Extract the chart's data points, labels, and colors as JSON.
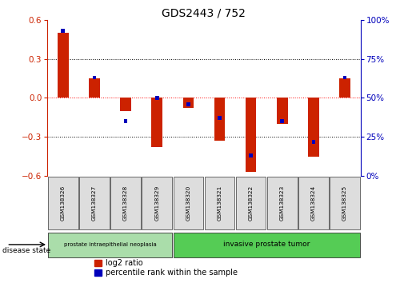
{
  "title": "GDS2443 / 752",
  "samples": [
    "GSM138326",
    "GSM138327",
    "GSM138328",
    "GSM138329",
    "GSM138320",
    "GSM138321",
    "GSM138322",
    "GSM138323",
    "GSM138324",
    "GSM138325"
  ],
  "log2_ratio": [
    0.5,
    0.15,
    -0.1,
    -0.38,
    -0.08,
    -0.33,
    -0.57,
    -0.2,
    -0.45,
    0.15
  ],
  "percentile_rank": [
    93,
    63,
    35,
    50,
    46,
    37,
    13,
    35,
    22,
    63
  ],
  "ylim": [
    -0.6,
    0.6
  ],
  "yticks_left": [
    -0.6,
    -0.3,
    0.0,
    0.3,
    0.6
  ],
  "yticks_right": [
    0,
    25,
    50,
    75,
    100
  ],
  "red_color": "#cc2200",
  "blue_color": "#0000bb",
  "group1_label": "prostate intraepithelial neoplasia",
  "group2_label": "invasive prostate tumor",
  "group1_count": 4,
  "group2_count": 6,
  "legend_log2": "log2 ratio",
  "legend_pct": "percentile rank within the sample",
  "disease_state_label": "disease state",
  "group1_color": "#aaddaa",
  "group2_color": "#55cc55",
  "red_bar_width": 0.35,
  "blue_bar_width": 0.12,
  "blue_bar_height": 0.03
}
